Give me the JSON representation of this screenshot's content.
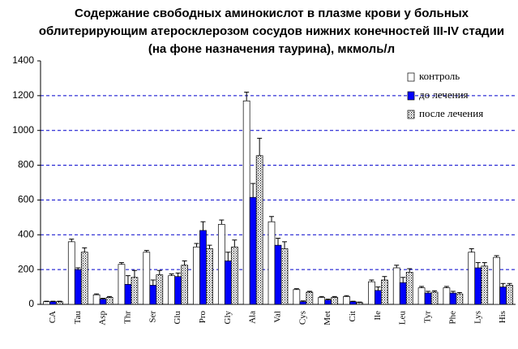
{
  "chart_data": {
    "type": "bar",
    "title": [
      "Содержание свободных аминокислот в плазме крови у больных",
      "облитерирующим атеросклерозом сосудов нижних конечностей III-IV стадии",
      "(на фоне назначения таурина), мкмоль/л"
    ],
    "categories": [
      "CA",
      "Tau",
      "Asp",
      "Thr",
      "Ser",
      "Glu",
      "Pro",
      "Gly",
      "Ala",
      "Val",
      "Cys",
      "Met",
      "Cit",
      "Ile",
      "Leu",
      "Tyr",
      "Phe",
      "Lys",
      "His"
    ],
    "series": [
      {
        "name": "контроль",
        "color": "#ffffff",
        "values": [
          15,
          360,
          55,
          230,
          300,
          165,
          330,
          460,
          1170,
          475,
          85,
          40,
          45,
          130,
          210,
          95,
          95,
          300,
          270
        ],
        "errors": [
          3,
          15,
          5,
          10,
          10,
          10,
          20,
          25,
          50,
          30,
          5,
          5,
          5,
          10,
          15,
          8,
          8,
          20,
          10
        ]
      },
      {
        "name": "до лечения",
        "color": "#0000ff",
        "values": [
          15,
          200,
          30,
          115,
          110,
          160,
          425,
          250,
          615,
          340,
          15,
          25,
          15,
          80,
          125,
          65,
          65,
          210,
          100
        ],
        "errors": [
          3,
          10,
          5,
          50,
          30,
          20,
          50,
          50,
          80,
          40,
          5,
          5,
          3,
          20,
          30,
          10,
          10,
          30,
          20
        ]
      },
      {
        "name": "после лечения",
        "color": "#dotted",
        "values": [
          15,
          300,
          40,
          155,
          170,
          225,
          320,
          330,
          855,
          320,
          70,
          40,
          10,
          140,
          185,
          70,
          60,
          220,
          110
        ],
        "errors": [
          3,
          25,
          5,
          40,
          25,
          25,
          20,
          40,
          100,
          40,
          5,
          5,
          3,
          20,
          20,
          8,
          8,
          20,
          10
        ]
      }
    ],
    "ylim": [
      0,
      1400
    ],
    "yticks": [
      0,
      200,
      400,
      600,
      800,
      1000,
      1200,
      1400
    ],
    "grid": true,
    "legend": "top-right"
  }
}
